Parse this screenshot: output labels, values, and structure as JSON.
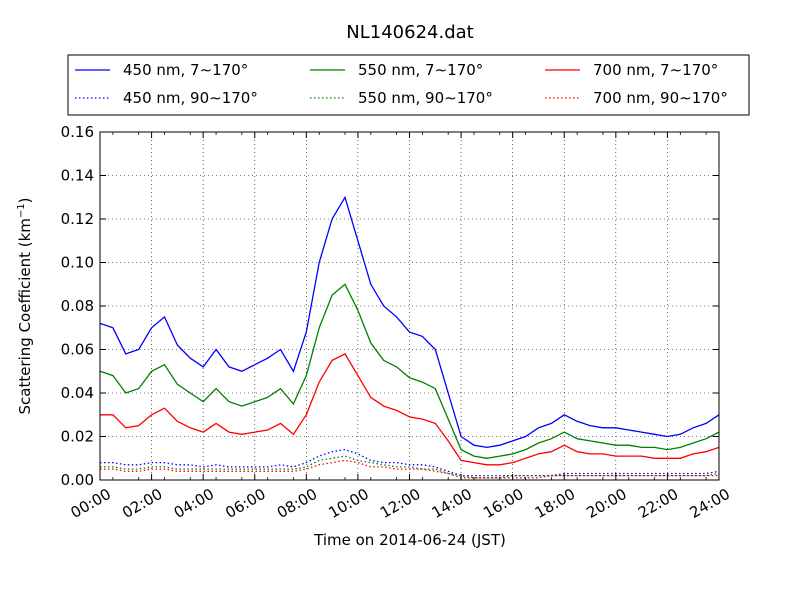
{
  "chart_data": {
    "type": "line",
    "title": "NL140624.dat",
    "xlabel": "Time on 2014-06-24 (JST)",
    "ylabel": "Scattering Coefficient (km",
    "ylabel_sup": "−1",
    "ylabel_end": ")",
    "xlim": [
      "00:00",
      "24:00"
    ],
    "ylim": [
      0,
      0.16
    ],
    "grid": true,
    "legend_position": "top",
    "x_ticks": [
      "00:00",
      "02:00",
      "04:00",
      "06:00",
      "08:00",
      "10:00",
      "12:00",
      "14:00",
      "16:00",
      "18:00",
      "20:00",
      "22:00",
      "24:00"
    ],
    "y_ticks": [
      "0.00",
      "0.02",
      "0.04",
      "0.06",
      "0.08",
      "0.10",
      "0.12",
      "0.14",
      "0.16"
    ],
    "x_hours": [
      0,
      0.5,
      1,
      1.5,
      2,
      2.5,
      3,
      3.5,
      4,
      4.5,
      5,
      5.5,
      6,
      6.5,
      7,
      7.5,
      8,
      8.5,
      9,
      9.5,
      10,
      10.5,
      11,
      11.5,
      12,
      12.5,
      13,
      13.5,
      14,
      14.5,
      15,
      15.5,
      16,
      16.5,
      17,
      17.5,
      18,
      18.5,
      19,
      19.5,
      20,
      20.5,
      21,
      21.5,
      22,
      22.5,
      23,
      23.5,
      24
    ],
    "series": [
      {
        "name": "450 nm, 7∼170°",
        "color": "#0000ff",
        "style": "solid",
        "values": [
          0.072,
          0.07,
          0.058,
          0.06,
          0.07,
          0.075,
          0.062,
          0.056,
          0.052,
          0.06,
          0.052,
          0.05,
          0.053,
          0.056,
          0.06,
          0.05,
          0.068,
          0.1,
          0.12,
          0.13,
          0.11,
          0.09,
          0.08,
          0.075,
          0.068,
          0.066,
          0.06,
          0.04,
          0.02,
          0.016,
          0.015,
          0.016,
          0.018,
          0.02,
          0.024,
          0.026,
          0.03,
          0.027,
          0.025,
          0.024,
          0.024,
          0.023,
          0.022,
          0.021,
          0.02,
          0.021,
          0.024,
          0.026,
          0.03
        ]
      },
      {
        "name": "550 nm, 7∼170°",
        "color": "#008000",
        "style": "solid",
        "values": [
          0.05,
          0.048,
          0.04,
          0.042,
          0.05,
          0.053,
          0.044,
          0.04,
          0.036,
          0.042,
          0.036,
          0.034,
          0.036,
          0.038,
          0.042,
          0.035,
          0.048,
          0.07,
          0.085,
          0.09,
          0.078,
          0.063,
          0.055,
          0.052,
          0.047,
          0.045,
          0.042,
          0.028,
          0.014,
          0.011,
          0.01,
          0.011,
          0.012,
          0.014,
          0.017,
          0.019,
          0.022,
          0.019,
          0.018,
          0.017,
          0.016,
          0.016,
          0.015,
          0.015,
          0.014,
          0.015,
          0.017,
          0.019,
          0.022
        ]
      },
      {
        "name": "700 nm, 7∼170°",
        "color": "#ff0000",
        "style": "solid",
        "values": [
          0.03,
          0.03,
          0.024,
          0.025,
          0.03,
          0.033,
          0.027,
          0.024,
          0.022,
          0.026,
          0.022,
          0.021,
          0.022,
          0.023,
          0.026,
          0.021,
          0.03,
          0.045,
          0.055,
          0.058,
          0.048,
          0.038,
          0.034,
          0.032,
          0.029,
          0.028,
          0.026,
          0.018,
          0.009,
          0.008,
          0.007,
          0.007,
          0.008,
          0.01,
          0.012,
          0.013,
          0.016,
          0.013,
          0.012,
          0.012,
          0.011,
          0.011,
          0.011,
          0.01,
          0.01,
          0.01,
          0.012,
          0.013,
          0.015
        ]
      },
      {
        "name": "450 nm, 90∼170°",
        "color": "#0000ff",
        "style": "dotted",
        "values": [
          0.008,
          0.008,
          0.007,
          0.007,
          0.008,
          0.008,
          0.007,
          0.007,
          0.006,
          0.007,
          0.006,
          0.006,
          0.006,
          0.006,
          0.007,
          0.006,
          0.008,
          0.011,
          0.013,
          0.014,
          0.012,
          0.009,
          0.008,
          0.008,
          0.007,
          0.007,
          0.006,
          0.004,
          0.002,
          0.002,
          0.002,
          0.002,
          0.002,
          0.002,
          0.002,
          0.002,
          0.003,
          0.003,
          0.003,
          0.003,
          0.003,
          0.003,
          0.003,
          0.003,
          0.003,
          0.003,
          0.003,
          0.003,
          0.004
        ]
      },
      {
        "name": "550 nm, 90∼170°",
        "color": "#008000",
        "style": "dotted",
        "values": [
          0.006,
          0.006,
          0.005,
          0.005,
          0.006,
          0.006,
          0.005,
          0.005,
          0.005,
          0.005,
          0.005,
          0.005,
          0.005,
          0.005,
          0.005,
          0.005,
          0.006,
          0.009,
          0.01,
          0.011,
          0.009,
          0.008,
          0.007,
          0.006,
          0.006,
          0.005,
          0.005,
          0.003,
          0.002,
          0.001,
          0.001,
          0.001,
          0.002,
          0.002,
          0.002,
          0.002,
          0.002,
          0.002,
          0.002,
          0.002,
          0.002,
          0.002,
          0.002,
          0.002,
          0.002,
          0.002,
          0.002,
          0.002,
          0.003
        ]
      },
      {
        "name": "700 nm, 90∼170°",
        "color": "#ff0000",
        "style": "dotted",
        "values": [
          0.005,
          0.005,
          0.004,
          0.004,
          0.005,
          0.005,
          0.004,
          0.004,
          0.004,
          0.004,
          0.004,
          0.004,
          0.004,
          0.004,
          0.004,
          0.004,
          0.005,
          0.007,
          0.008,
          0.009,
          0.008,
          0.006,
          0.006,
          0.005,
          0.005,
          0.005,
          0.004,
          0.003,
          0.001,
          0.001,
          0.001,
          0.001,
          0.001,
          0.001,
          0.001,
          0.002,
          0.002,
          0.002,
          0.002,
          0.002,
          0.002,
          0.002,
          0.002,
          0.002,
          0.002,
          0.002,
          0.002,
          0.002,
          0.002
        ]
      }
    ]
  }
}
